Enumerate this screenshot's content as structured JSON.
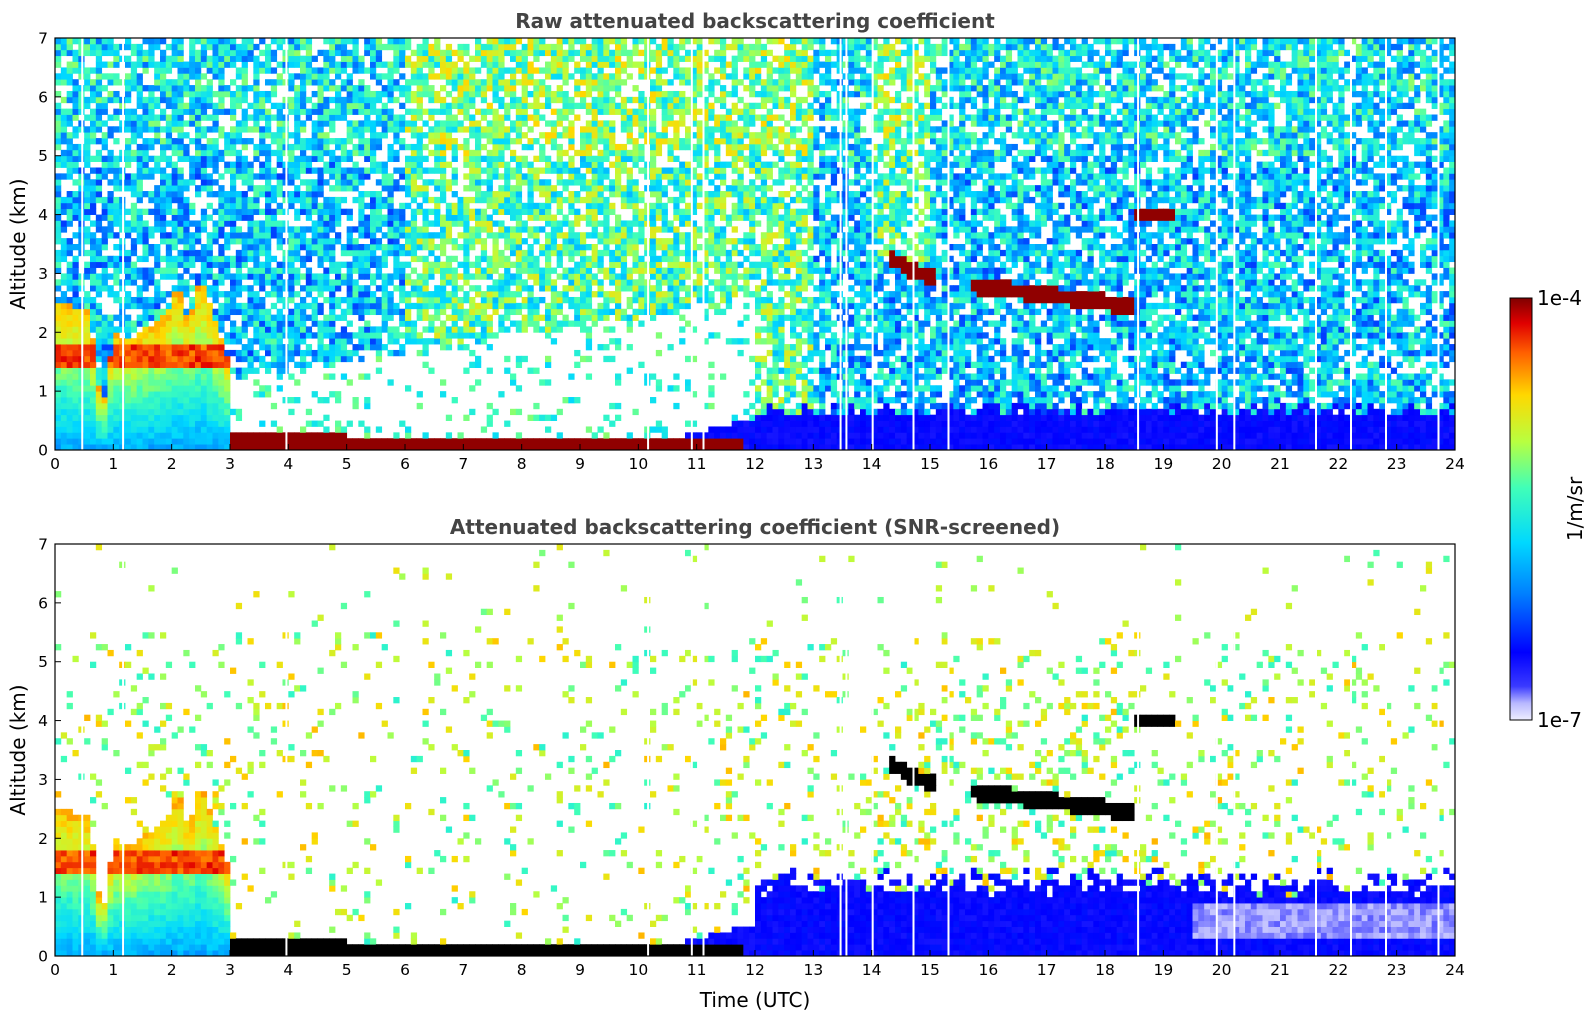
{
  "chart_data": [
    {
      "type": "heatmap",
      "title": "Raw attenuated backscattering coefficient",
      "xlabel": "",
      "ylabel": "Altitude (km)",
      "xlim": [
        0,
        24
      ],
      "ylim": [
        0,
        7
      ],
      "x_ticks": [
        "0",
        "1",
        "2",
        "3",
        "4",
        "5",
        "6",
        "7",
        "8",
        "9",
        "10",
        "11",
        "12",
        "13",
        "14",
        "15",
        "16",
        "17",
        "18",
        "19",
        "20",
        "21",
        "22",
        "23",
        "24"
      ],
      "y_ticks": [
        "0",
        "1",
        "2",
        "3",
        "4",
        "5",
        "6",
        "7"
      ],
      "screened": false,
      "features": [
        {
          "label": "low clouds / boundary layer",
          "t_start": 0,
          "t_end": 2.95,
          "alt_top_km": 2.9
        },
        {
          "label": "elevated layer",
          "t": [
            14.3,
            14.6,
            15.1
          ],
          "alt_km": [
            3.3,
            3.1,
            2.9
          ]
        },
        {
          "label": "elevated layer",
          "t": [
            15.7,
            16.5,
            17.3,
            18.1,
            18.5
          ],
          "alt_km": [
            2.8,
            2.7,
            2.6,
            2.5,
            2.4
          ]
        },
        {
          "label": "elevated layer",
          "t": [
            18.5,
            19.2
          ],
          "alt_km": [
            4.0,
            4.0
          ]
        },
        {
          "label": "near-surface layer",
          "t": [
            3.0,
            6.0,
            9.0,
            11.8
          ],
          "alt_km": [
            0.15,
            0.12,
            0.08,
            0.04
          ]
        }
      ]
    },
    {
      "type": "heatmap",
      "title": "Attenuated backscattering coefficient (SNR-screened)",
      "xlabel": "Time (UTC)",
      "ylabel": "Altitude (km)",
      "xlim": [
        0,
        24
      ],
      "ylim": [
        0,
        7
      ],
      "x_ticks": [
        "0",
        "1",
        "2",
        "3",
        "4",
        "5",
        "6",
        "7",
        "8",
        "9",
        "10",
        "11",
        "12",
        "13",
        "14",
        "15",
        "16",
        "17",
        "18",
        "19",
        "20",
        "21",
        "22",
        "23",
        "24"
      ],
      "y_ticks": [
        "0",
        "1",
        "2",
        "3",
        "4",
        "5",
        "6",
        "7"
      ],
      "screened": true
    }
  ],
  "colorbar": {
    "label": "1/m/sr",
    "min_label": "1e-7",
    "max_label": "1e-4",
    "scale": "log",
    "colormap": "jet"
  }
}
